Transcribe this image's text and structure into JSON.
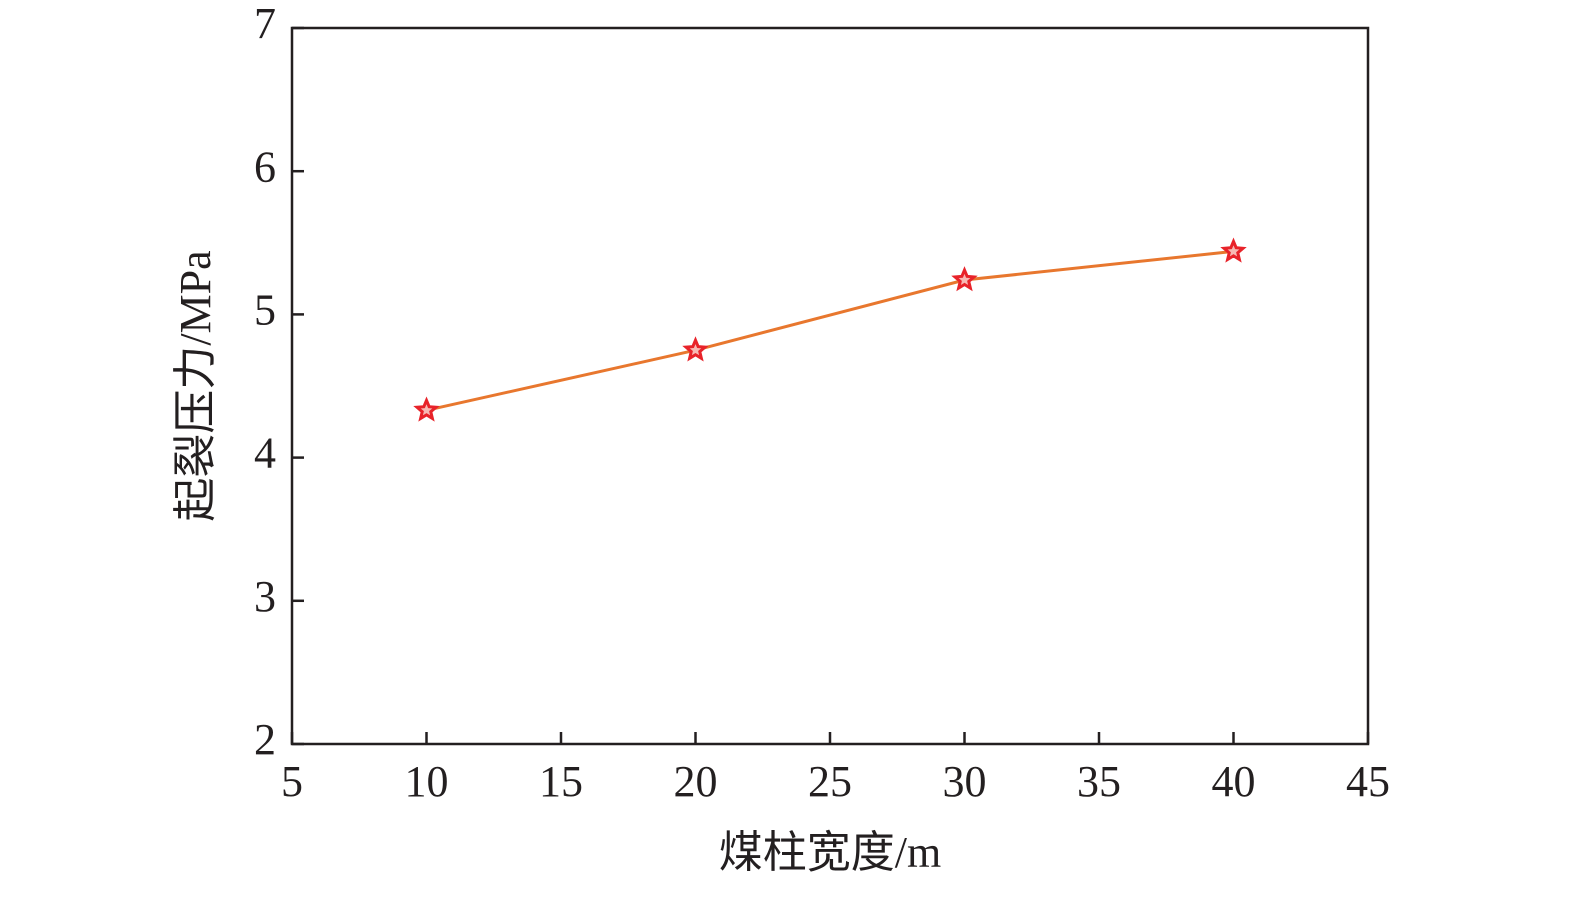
{
  "chart_data": {
    "type": "line",
    "xlabel": "煤柱宽度/m",
    "ylabel": "起裂压力/MPa",
    "x": [
      10,
      20,
      30,
      40
    ],
    "series": [
      {
        "color": "#e8772e",
        "marker_color": "#e8232a",
        "values": [
          4.33,
          4.75,
          5.24,
          5.44
        ]
      }
    ],
    "xlim": [
      5,
      45
    ],
    "xticks": [
      5,
      10,
      15,
      20,
      25,
      30,
      35,
      40,
      45
    ],
    "ylim": [
      2,
      7
    ],
    "yticks": [
      2,
      3,
      4,
      5,
      6,
      7
    ],
    "grid": false
  }
}
